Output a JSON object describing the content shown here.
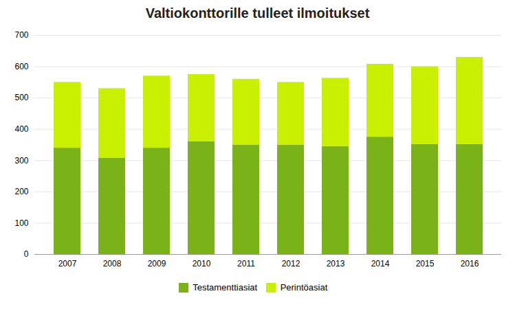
{
  "chart_data": {
    "type": "bar",
    "stacked": true,
    "title": "Valtiokonttorille tulleet ilmoitukset",
    "categories": [
      "2007",
      "2008",
      "2009",
      "2010",
      "2011",
      "2012",
      "2013",
      "2014",
      "2015",
      "2016"
    ],
    "series": [
      {
        "name": "Testamenttiasiat",
        "color": "#7ab317",
        "values": [
          340,
          308,
          340,
          360,
          350,
          350,
          345,
          375,
          352,
          352
        ]
      },
      {
        "name": "Perintöasiat",
        "color": "#c8f000",
        "values": [
          210,
          222,
          230,
          215,
          210,
          200,
          218,
          233,
          248,
          278
        ]
      }
    ],
    "ylim": [
      0,
      700
    ],
    "yticks": [
      0,
      100,
      200,
      300,
      400,
      500,
      600,
      700
    ],
    "grid": true,
    "legend": "bottom"
  }
}
